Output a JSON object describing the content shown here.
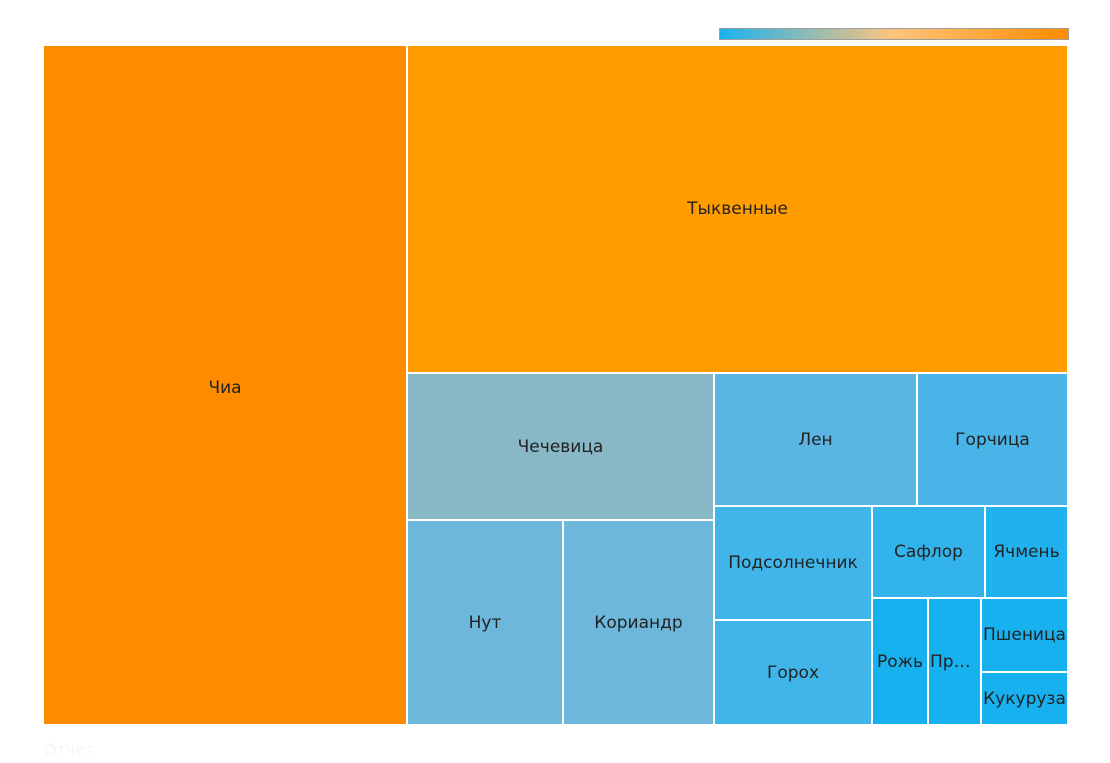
{
  "chart_data": {
    "type": "treemap",
    "title": "",
    "footer": "Отчет",
    "colorscale": [
      "#1ab2ef",
      "#ffc47d",
      "#ff8c00"
    ],
    "items": [
      {
        "name": "Чиа",
        "value": 24.8,
        "color": "#ff8c00"
      },
      {
        "name": "Тыквенные",
        "value": 23.8,
        "color": "#ff9c00"
      },
      {
        "name": "Чечевица",
        "value": 4.55,
        "color": "#88b7c6"
      },
      {
        "name": "Нут",
        "value": 3.22,
        "color": "#6cb7da"
      },
      {
        "name": "Кориандр",
        "value": 3.12,
        "color": "#6cb7da"
      },
      {
        "name": "Лен",
        "value": 2.64,
        "color": "#5bb5e2"
      },
      {
        "name": "Горчица",
        "value": 1.93,
        "color": "#48b4e8"
      },
      {
        "name": "Подсолнечник",
        "value": 1.47,
        "color": "#3fb5ea"
      },
      {
        "name": "Горох",
        "value": 1.34,
        "color": "#3fb5ea"
      },
      {
        "name": "Сафлор",
        "value": 0.93,
        "color": "#33b3ec"
      },
      {
        "name": "Ячмень",
        "value": 0.66,
        "color": "#20b2ee"
      },
      {
        "name": "Рожь",
        "value": 0.52,
        "color": "#18b1f0"
      },
      {
        "name": "Просо",
        "value": 0.49,
        "color": "#18b1f0"
      },
      {
        "name": "Пшеница",
        "value": 0.37,
        "color": "#18b1f0"
      },
      {
        "name": "Кукуруза",
        "value": 0.35,
        "color": "#18b1f0"
      }
    ]
  }
}
